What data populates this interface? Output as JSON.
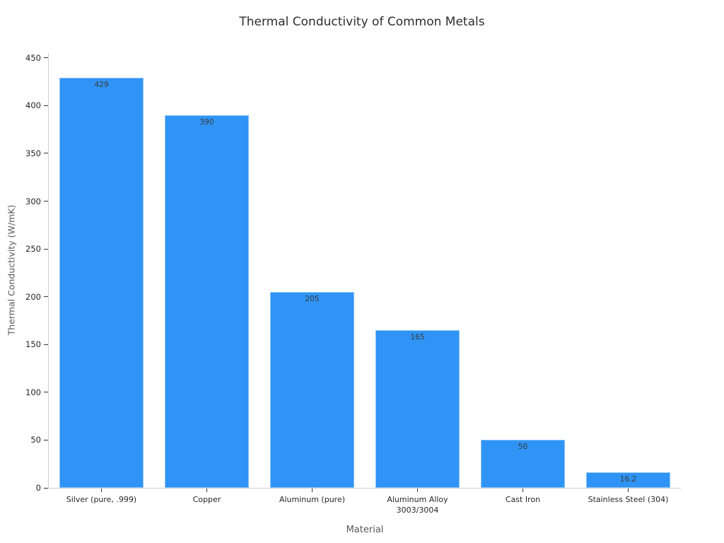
{
  "chart_data": {
    "type": "bar",
    "title": "Thermal Conductivity of Common Metals",
    "xlabel": "Material",
    "ylabel": "Thermal Conductivity (W/mK)",
    "categories": [
      "Silver (pure, .999)",
      "Copper",
      "Aluminum (pure)",
      "Aluminum Alloy\n3003/3004",
      "Cast Iron",
      "Stainless Steel (304)"
    ],
    "values": [
      429,
      390,
      205,
      165,
      50,
      16.2
    ],
    "bar_labels": [
      "429",
      "390",
      "205",
      "165",
      "50",
      "16.2"
    ],
    "y_ticks": [
      0,
      50,
      100,
      150,
      200,
      250,
      300,
      350,
      400,
      450
    ],
    "ylim": [
      0,
      455
    ],
    "grid": false,
    "legend_position": "none",
    "colors": {
      "bar_fill": "#2f94f5",
      "bar_edge": "#8ac2f9",
      "value_label": "#3a3a3a",
      "tick_label": "#262626",
      "axis_label": "#595959",
      "spine": "#cfcfcf",
      "background": "#ffffff"
    }
  }
}
